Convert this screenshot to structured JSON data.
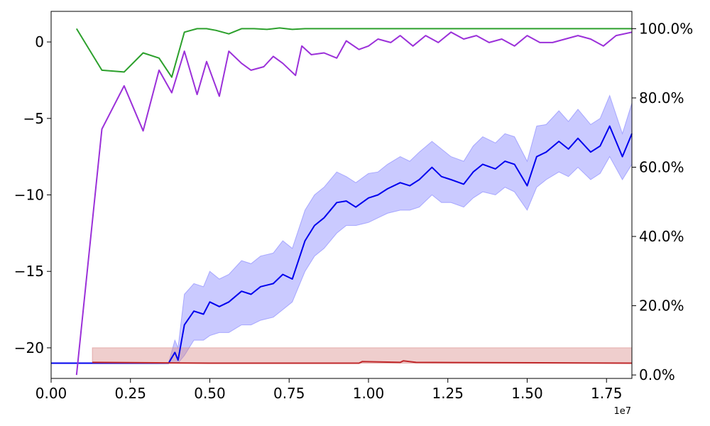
{
  "chart_data": {
    "type": "line",
    "grid": false,
    "x_offset_label": "1e7",
    "xlim": [
      0,
      1.83
    ],
    "ylim_left": [
      -22,
      2
    ],
    "ylim_right": [
      -1,
      105
    ],
    "x_ticks": [
      {
        "value": 0.0,
        "label": "0.00"
      },
      {
        "value": 0.25,
        "label": "0.25"
      },
      {
        "value": 0.5,
        "label": "0.50"
      },
      {
        "value": 0.75,
        "label": "0.75"
      },
      {
        "value": 1.0,
        "label": "1.00"
      },
      {
        "value": 1.25,
        "label": "1.25"
      },
      {
        "value": 1.5,
        "label": "1.50"
      },
      {
        "value": 1.75,
        "label": "1.75"
      }
    ],
    "y_left_ticks": [
      {
        "value": 0,
        "label": "0"
      },
      {
        "value": -5,
        "label": "−5"
      },
      {
        "value": -10,
        "label": "−10"
      },
      {
        "value": -15,
        "label": "−15"
      },
      {
        "value": -20,
        "label": "−20"
      }
    ],
    "y_right_ticks": [
      {
        "value": 0,
        "label": "0.0%"
      },
      {
        "value": 20,
        "label": "20.0%"
      },
      {
        "value": 40,
        "label": "40.0%"
      },
      {
        "value": 60,
        "label": "60.0%"
      },
      {
        "value": 80,
        "label": "80.0%"
      },
      {
        "value": 100,
        "label": "100.0%"
      }
    ],
    "colors": {
      "blue_line": "#0000ee",
      "blue_band": "#8080ff",
      "red_line": "#c0282a",
      "red_band": "#d88a88",
      "green_line": "#2ca02c",
      "purple_line": "#9b30d9"
    },
    "series": [
      {
        "axis": "left",
        "color_key": "blue_line",
        "band_color_key": "blue_band",
        "x": [
          0,
          0.1,
          0.2,
          0.3,
          0.37,
          0.39,
          0.4,
          0.42,
          0.45,
          0.48,
          0.5,
          0.53,
          0.56,
          0.6,
          0.63,
          0.66,
          0.7,
          0.73,
          0.76,
          0.8,
          0.83,
          0.86,
          0.9,
          0.93,
          0.96,
          1.0,
          1.03,
          1.06,
          1.1,
          1.13,
          1.16,
          1.2,
          1.23,
          1.26,
          1.3,
          1.33,
          1.36,
          1.4,
          1.43,
          1.46,
          1.5,
          1.53,
          1.56,
          1.6,
          1.63,
          1.66,
          1.7,
          1.73,
          1.76,
          1.8,
          1.83
        ],
        "y": [
          -21,
          -21,
          -21,
          -21,
          -21,
          -20.3,
          -20.8,
          -18.5,
          -17.6,
          -17.8,
          -17.0,
          -17.3,
          -17.0,
          -16.3,
          -16.5,
          -16.0,
          -15.8,
          -15.2,
          -15.5,
          -13.0,
          -12.0,
          -11.5,
          -10.5,
          -10.4,
          -10.8,
          -10.2,
          -10.0,
          -9.6,
          -9.2,
          -9.4,
          -9.0,
          -8.2,
          -8.8,
          -9.0,
          -9.3,
          -8.5,
          -8.0,
          -8.3,
          -7.8,
          -8.0,
          -9.4,
          -7.5,
          -7.2,
          -6.5,
          -7.0,
          -6.3,
          -7.2,
          -6.8,
          -5.5,
          -7.5,
          -6.0
        ],
        "band_lower": [
          -21,
          -21,
          -21,
          -21,
          -21,
          -21,
          -21,
          -20.5,
          -19.5,
          -19.5,
          -19.2,
          -19.0,
          -19.0,
          -18.5,
          -18.5,
          -18.2,
          -18.0,
          -17.5,
          -17.0,
          -15.0,
          -14.0,
          -13.5,
          -12.5,
          -12.0,
          -12.0,
          -11.8,
          -11.5,
          -11.2,
          -11.0,
          -11.0,
          -10.8,
          -10.0,
          -10.5,
          -10.5,
          -10.8,
          -10.2,
          -9.8,
          -10.0,
          -9.5,
          -9.8,
          -11.0,
          -9.5,
          -9.0,
          -8.5,
          -8.8,
          -8.2,
          -9.0,
          -8.6,
          -7.5,
          -9.0,
          -8.0
        ],
        "band_upper": [
          -21,
          -21,
          -21,
          -21,
          -21,
          -19.5,
          -20.0,
          -16.5,
          -15.8,
          -16.0,
          -15.0,
          -15.5,
          -15.2,
          -14.3,
          -14.5,
          -14.0,
          -13.8,
          -13.0,
          -13.5,
          -11.0,
          -10.0,
          -9.5,
          -8.5,
          -8.8,
          -9.2,
          -8.6,
          -8.5,
          -8.0,
          -7.5,
          -7.8,
          -7.2,
          -6.5,
          -7.0,
          -7.5,
          -7.8,
          -6.8,
          -6.2,
          -6.6,
          -6.0,
          -6.2,
          -7.8,
          -5.5,
          -5.4,
          -4.5,
          -5.2,
          -4.4,
          -5.4,
          -5.0,
          -3.5,
          -6.0,
          -4.0
        ]
      },
      {
        "axis": "left",
        "color_key": "red_line",
        "band_color_key": "red_band",
        "x": [
          0.13,
          0.5,
          0.97,
          0.98,
          1.1,
          1.11,
          1.15,
          1.83
        ],
        "y": [
          -20.95,
          -21,
          -21,
          -20.9,
          -20.95,
          -20.85,
          -20.95,
          -21
        ],
        "band_lower": [
          -21,
          -21,
          -21,
          -21,
          -21,
          -21,
          -21,
          -21
        ],
        "band_upper": [
          -20,
          -20,
          -20,
          -20,
          -20,
          -20,
          -20,
          -20
        ]
      },
      {
        "axis": "right",
        "color_key": "green_line",
        "x": [
          0.08,
          0.16,
          0.23,
          0.29,
          0.34,
          0.38,
          0.42,
          0.46,
          0.49,
          0.52,
          0.56,
          0.6,
          0.64,
          0.68,
          0.72,
          0.76,
          0.8,
          0.84,
          0.9,
          0.96,
          1.02,
          1.08,
          1.14,
          1.2,
          1.26,
          1.32,
          1.38,
          1.44,
          1.5,
          1.56,
          1.62,
          1.68,
          1.74,
          1.8,
          1.83
        ],
        "y": [
          100,
          88,
          87.5,
          93,
          91.5,
          86,
          99,
          100,
          100,
          99.5,
          98.5,
          100,
          100,
          99.8,
          100.2,
          99.8,
          100,
          100,
          100,
          100,
          100,
          100,
          100,
          100,
          100,
          100,
          100,
          100,
          100,
          100,
          100,
          100,
          100,
          100,
          100
        ]
      },
      {
        "axis": "right",
        "color_key": "purple_line",
        "x": [
          0.08,
          0.16,
          0.23,
          0.29,
          0.34,
          0.38,
          0.42,
          0.46,
          0.49,
          0.53,
          0.56,
          0.6,
          0.63,
          0.67,
          0.7,
          0.73,
          0.77,
          0.79,
          0.82,
          0.86,
          0.9,
          0.93,
          0.97,
          1.0,
          1.03,
          1.07,
          1.1,
          1.14,
          1.18,
          1.22,
          1.26,
          1.3,
          1.34,
          1.38,
          1.42,
          1.46,
          1.5,
          1.54,
          1.58,
          1.62,
          1.66,
          1.7,
          1.74,
          1.78,
          1.83
        ],
        "y": [
          0,
          71,
          83.5,
          70.5,
          88,
          81.5,
          93.5,
          81,
          90.5,
          80.5,
          93.5,
          90,
          88,
          89,
          92,
          90,
          86.5,
          95,
          92.5,
          93,
          91.5,
          96.5,
          94,
          95,
          97,
          96,
          98,
          95,
          98,
          96,
          99,
          97,
          98,
          96,
          97,
          95,
          98,
          96,
          96,
          97,
          98,
          97,
          95,
          98,
          99
        ]
      }
    ]
  }
}
